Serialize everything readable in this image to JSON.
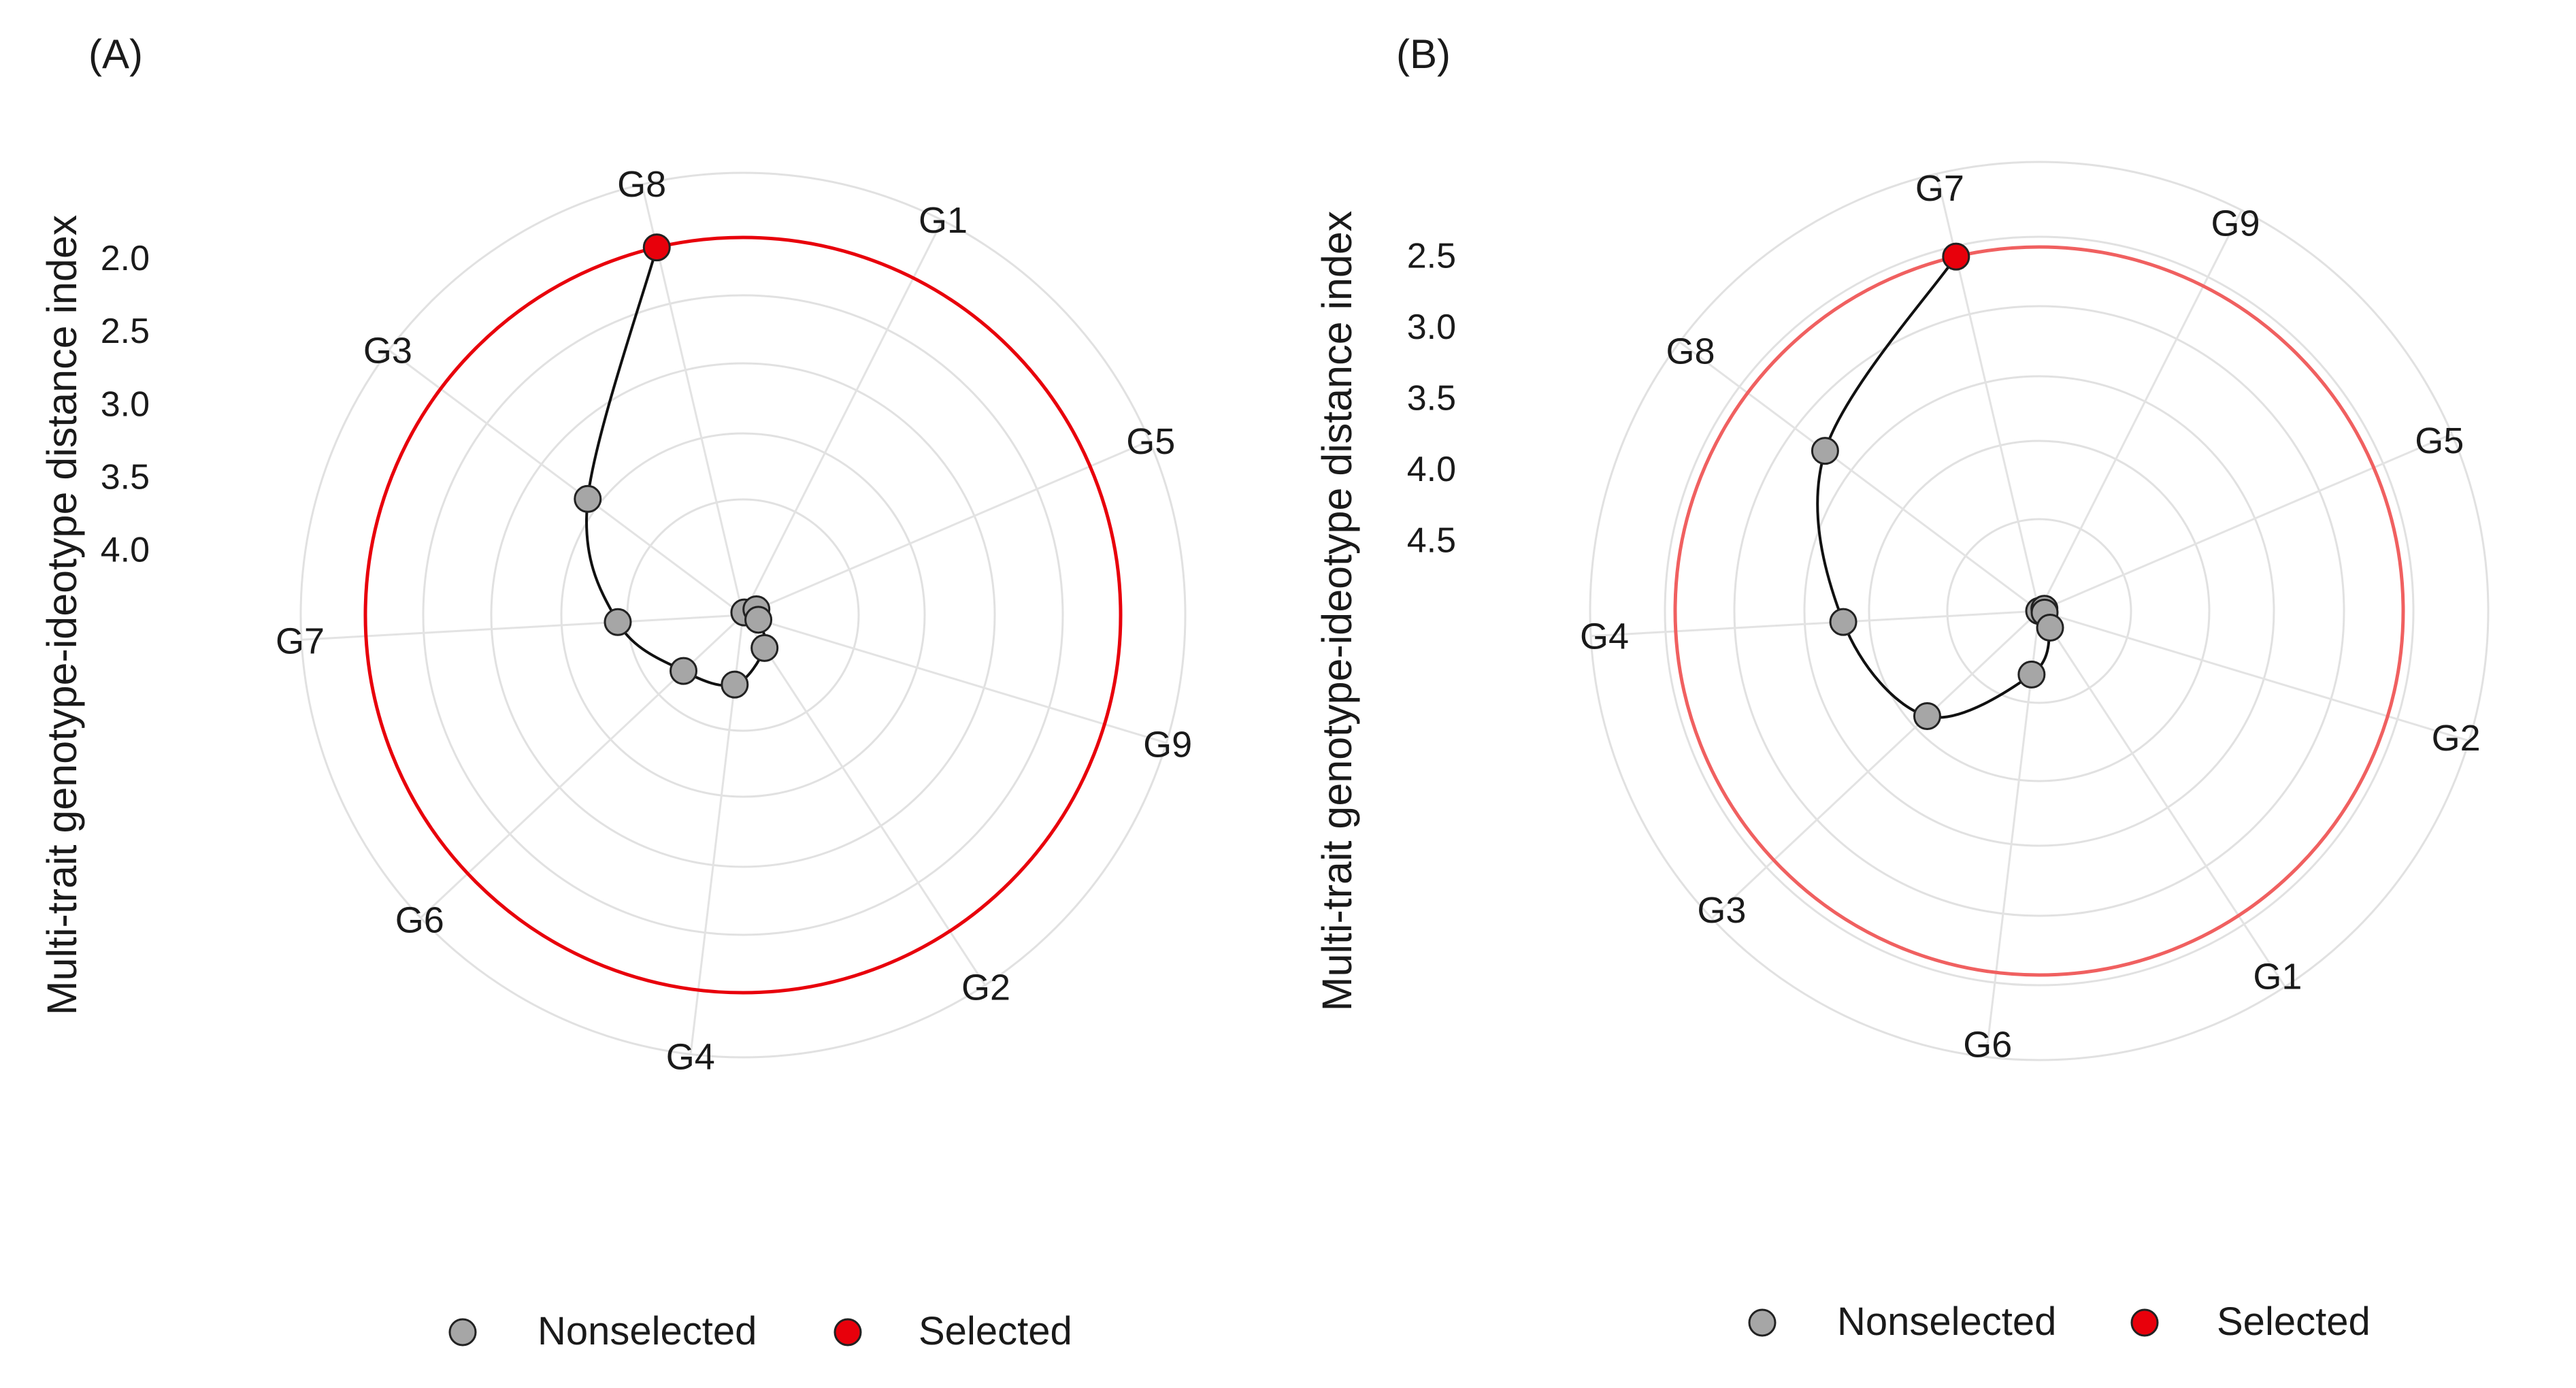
{
  "chart_data": [
    {
      "type": "radar",
      "panel_label": "(A)",
      "ylabel": "Multi-trait genotype-ideotype distance index",
      "y_ticks": [
        2.0,
        2.5,
        3.0,
        3.5,
        4.0
      ],
      "y_tick_labels": [
        "2.0",
        "2.5",
        "3.0",
        "3.5",
        "4.0"
      ],
      "categories": [
        "G8",
        "G1",
        "G5",
        "G9",
        "G2",
        "G4",
        "G6",
        "G7",
        "G3"
      ],
      "values": [
        1.86,
        4.43,
        4.35,
        4.34,
        4.18,
        3.97,
        3.89,
        3.59,
        3.12
      ],
      "status": [
        "Selected",
        "Nonselected",
        "Nonselected",
        "Nonselected",
        "Nonselected",
        "Nonselected",
        "Nonselected",
        "Nonselected",
        "Nonselected"
      ],
      "selection_cutoff": 1.86,
      "legend": [
        "Nonselected",
        "Selected"
      ]
    },
    {
      "type": "radar",
      "panel_label": "(B)",
      "ylabel": "Multi-trait genotype-ideotype distance index",
      "y_ticks": [
        2.5,
        3.0,
        3.5,
        4.0,
        4.5
      ],
      "y_tick_labels": [
        "2.5",
        "3.0",
        "3.5",
        "4.0",
        "4.5"
      ],
      "categories": [
        "G7",
        "G9",
        "G5",
        "G2",
        "G1",
        "G6",
        "G3",
        "G4",
        "G8"
      ],
      "values": [
        2.44,
        5.0,
        4.96,
        4.96,
        4.86,
        4.55,
        3.92,
        3.62,
        3.12
      ],
      "status": [
        "Selected",
        "Nonselected",
        "Nonselected",
        "Nonselected",
        "Nonselected",
        "Nonselected",
        "Nonselected",
        "Nonselected",
        "Nonselected"
      ],
      "selection_cutoff": 2.44,
      "legend": [
        "Nonselected",
        "Selected"
      ]
    }
  ],
  "colors": {
    "selected": "#e8000b",
    "nonselected": "#a6a6a6",
    "curve": "#111111",
    "cutoff_ring_a": "#e8000b",
    "cutoff_ring_b": "#f06060",
    "grid": "#e1e1e1"
  },
  "legend": {
    "nonselected_label": "Nonselected",
    "selected_label": "Selected"
  }
}
